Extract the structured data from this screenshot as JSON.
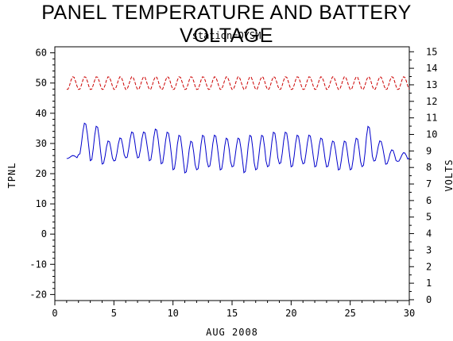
{
  "chart_data": {
    "type": "line",
    "title": "PANEL TEMPERATURE AND BATTERY VOLTAGE",
    "subtitle": "station=OYSM",
    "xlabel": "AUG 2008",
    "ylabel_left": "TPNL",
    "ylabel_right": "VOLTS",
    "xlim": [
      0,
      30
    ],
    "ylim_left": [
      -22,
      62
    ],
    "ylim_right": [
      -0.05,
      15.3
    ],
    "xticks": [
      0,
      5,
      10,
      15,
      20,
      25,
      30
    ],
    "yticks_left": [
      -20,
      -10,
      0,
      10,
      20,
      30,
      40,
      50,
      60
    ],
    "yticks_right": [
      0,
      1,
      2,
      3,
      4,
      5,
      6,
      7,
      8,
      9,
      10,
      11,
      12,
      13,
      14,
      15
    ],
    "series": [
      {
        "name": "TPNL",
        "axis": "left",
        "color": "#0000cc",
        "style": "solid",
        "day_max": [
          26,
          37,
          36,
          31,
          32,
          34,
          34,
          35,
          34,
          33,
          31,
          33,
          33,
          32,
          32,
          33,
          33,
          34,
          34,
          33,
          33,
          32,
          31,
          31,
          32,
          36,
          31,
          28,
          27,
          34
        ],
        "day_min": [
          25,
          26,
          24,
          23,
          24,
          25,
          25,
          24,
          23,
          21,
          20,
          21,
          22,
          21,
          22,
          20,
          21,
          22,
          23,
          22,
          23,
          22,
          22,
          21,
          21,
          22,
          24,
          23,
          24,
          25
        ]
      },
      {
        "name": "VOLTS",
        "axis": "right",
        "color": "#cc0000",
        "style": "dashed",
        "day_max": [
          13.5,
          13.5,
          13.5,
          13.5,
          13.5,
          13.5,
          13.5,
          13.5,
          13.5,
          13.5,
          13.5,
          13.5,
          13.5,
          13.5,
          13.5,
          13.5,
          13.5,
          13.5,
          13.5,
          13.5,
          13.5,
          13.5,
          13.5,
          13.5,
          13.5,
          13.5,
          13.5,
          13.5,
          13.5,
          13.5
        ],
        "day_min": [
          12.7,
          12.7,
          12.7,
          12.7,
          12.7,
          12.7,
          12.7,
          12.7,
          12.7,
          12.7,
          12.7,
          12.7,
          12.7,
          12.7,
          12.7,
          12.7,
          12.7,
          12.7,
          12.7,
          12.7,
          12.7,
          12.7,
          12.7,
          12.7,
          12.7,
          12.7,
          12.7,
          12.7,
          12.7,
          12.7
        ]
      }
    ]
  }
}
